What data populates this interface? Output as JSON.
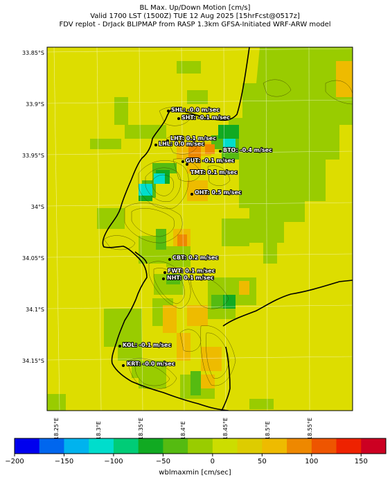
{
  "title": {
    "line1": "BL Max. Up/Down Motion [cm/s]",
    "line2": "Valid 1700 LST (1500Z) TUE 12 Aug 2025 [15hrFcst@0517z]",
    "line3": "FDV replot - DrJack BLIPMAP from RASP 1.3km GFSA-Initiated WRF-ARW model"
  },
  "lat_ticks": [
    "33.85°S",
    "33.9°S",
    "33.95°S",
    "34°S",
    "34.05°S",
    "34.1°S",
    "34.15°S"
  ],
  "lon_ticks": [
    "18.25°E",
    "18.3°E",
    "18.35°E",
    "18.4°E",
    "18.45°E",
    "18.5°E",
    "18.55°E"
  ],
  "sites": [
    {
      "label": "SHL: -0.0 m/sec"
    },
    {
      "label": "SHT: -0.1 m/sec"
    },
    {
      "label": "LHT: 0.1 m/sec"
    },
    {
      "label": "LHL: 0.0 m/sec"
    },
    {
      "label": "BTO: -0.4 m/sec"
    },
    {
      "label": "GUT: -0.1 m/sec"
    },
    {
      "label": "TMT: 0.1 m/sec"
    },
    {
      "label": "OHT: 0.5 m/sec"
    },
    {
      "label": "CBT: 0.2 m/sec"
    },
    {
      "label": "FWT: 0.1 m/sec"
    },
    {
      "label": "NHT: 0.1 m/sec"
    },
    {
      "label": "KOL: -0.1 m/sec"
    },
    {
      "label": "KRT: -0.0 m/sec"
    }
  ],
  "colorbar": {
    "title": "wblmaxmin [cm/sec]",
    "min": -200,
    "max": 175,
    "tick_labels": [
      "−200",
      "−150",
      "−100",
      "−50",
      "0",
      "50",
      "100",
      "150"
    ],
    "tick_values": [
      -200,
      -150,
      -100,
      -50,
      0,
      50,
      100,
      150
    ],
    "colors": [
      "#0000ee",
      "#0066ee",
      "#00b3ee",
      "#00ddcc",
      "#00cc77",
      "#11aa22",
      "#55bb11",
      "#99cc00",
      "#ccdd00",
      "#ddcc00",
      "#eebb00",
      "#ee8800",
      "#ee5500",
      "#ee2200",
      "#cc0022"
    ]
  },
  "colors": {
    "background_field": "#dddd00",
    "weak_lift": "#99cc00",
    "moderate_sink": "#55bb11",
    "strong_sink": "#11aa22",
    "very_strong_sink": "#00ddcc",
    "lift": "#eebb00",
    "strong_lift": "#ee8800",
    "coastline": "#000000",
    "contour": "#333300"
  }
}
